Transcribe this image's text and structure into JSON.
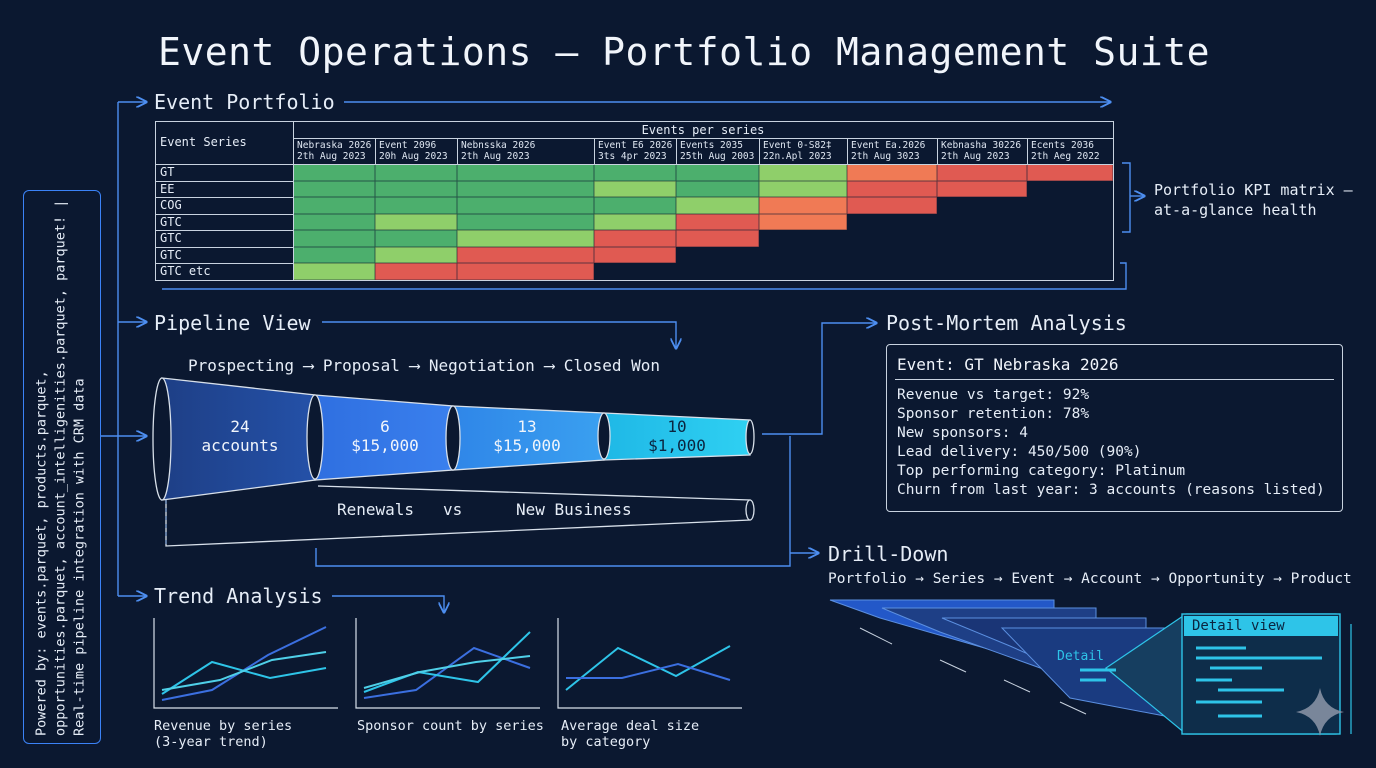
{
  "title": "Event Operations — Portfolio Management Suite",
  "side_text": "Powered by: events.parquet, products.parquet, opportunities.parquet, account_intelligenities.parquet, parquet! | Real-time pipeline integration with CRM data",
  "portfolio": {
    "heading": "Event Portfolio",
    "series_header": "Event Series",
    "events_header": "Events per series",
    "columns": [
      {
        "name": "Nebraska 2026",
        "date": "2th Aug 2023"
      },
      {
        "name": "Event 2096",
        "date": "20h Aug 2023"
      },
      {
        "name": "Nebnsska 2026",
        "date": "2th Aug 2023"
      },
      {
        "name": "Event E6 2026",
        "date": "3ts 4pr 2023"
      },
      {
        "name": "Events 2035",
        "date": "25th Aug 2003"
      },
      {
        "name": "Event 0-S82‡",
        "date": "22n.Apl 2023"
      },
      {
        "name": "Event Ea.2026",
        "date": "2th Aug 3023"
      },
      {
        "name": "Kebnasha 30226",
        "date": "2th Aug 2023"
      },
      {
        "name": "Ecents 2036",
        "date": "2th Aeg 2022"
      }
    ],
    "rows": [
      {
        "label": "GT",
        "cells": [
          "g",
          "g",
          "g",
          "g",
          "g",
          "lg",
          "o",
          "r",
          "r"
        ]
      },
      {
        "label": "EE",
        "cells": [
          "g",
          "g",
          "g",
          "lg",
          "g",
          "lg",
          "r",
          "r",
          ""
        ]
      },
      {
        "label": "COG",
        "cells": [
          "g",
          "g",
          "g",
          "g",
          "lg",
          "o",
          "r",
          "",
          ""
        ]
      },
      {
        "label": "GTC",
        "cells": [
          "g",
          "lg",
          "g",
          "lg",
          "r",
          "o",
          "",
          "",
          ""
        ]
      },
      {
        "label": "GTC",
        "cells": [
          "g",
          "g",
          "lg",
          "r",
          "r",
          "",
          "",
          "",
          ""
        ]
      },
      {
        "label": "GTC",
        "cells": [
          "g",
          "lg",
          "r",
          "r",
          "",
          "",
          "",
          "",
          ""
        ]
      },
      {
        "label": "GTC etc",
        "cells": [
          "lg",
          "r",
          "r",
          "",
          "",
          "",
          "",
          "",
          ""
        ]
      }
    ],
    "colors": {
      "g": "#4caf6d",
      "lg": "#8fcf6a",
      "o": "#f07a55",
      "r": "#e05a52"
    },
    "annotation_line1": "Portfolio KPI matrix —",
    "annotation_line2": "at-a-glance health"
  },
  "pipeline": {
    "heading": "Pipeline View",
    "stages": [
      "Prospecting",
      "Proposal",
      "Negotiation",
      "Closed Won"
    ],
    "segments": [
      {
        "line1": "24",
        "line2": "accounts"
      },
      {
        "line1": "6",
        "line2": "$15,000"
      },
      {
        "line1": "13",
        "line2": "$15,000"
      },
      {
        "line1": "10",
        "line2": "$1,000"
      }
    ],
    "renewals_label": "Renewals",
    "vs_label": "vs",
    "new_business_label": "New Business"
  },
  "post_mortem": {
    "heading": "Post-Mortem Analysis",
    "event_title": "Event: GT Nebraska 2026",
    "lines": [
      "Revenue vs target: 92%",
      "Sponsor retention: 78%",
      "New sponsors: 4",
      "Lead delivery: 450/500 (90%)",
      "Top performing category: Platinum",
      "Churn from last year: 3 accounts (reasons listed)"
    ]
  },
  "drilldown": {
    "heading": "Drill-Down",
    "path": "Portfolio → Series → Event → Account → Opportunity → Product",
    "detail_view_label": "Detail view",
    "detail_label": "Detail"
  },
  "trend": {
    "heading": "Trend Analysis",
    "charts": [
      {
        "caption_line1": "Revenue by series",
        "caption_line2": "(3-year trend)"
      },
      {
        "caption_line1": "Sponsor count by series",
        "caption_line2": ""
      },
      {
        "caption_line1": "Average deal size",
        "caption_line2": "by category"
      }
    ]
  },
  "colors": {
    "background": "#0b1830",
    "accent": "#3b82f6",
    "cyan": "#2ec4e8"
  }
}
